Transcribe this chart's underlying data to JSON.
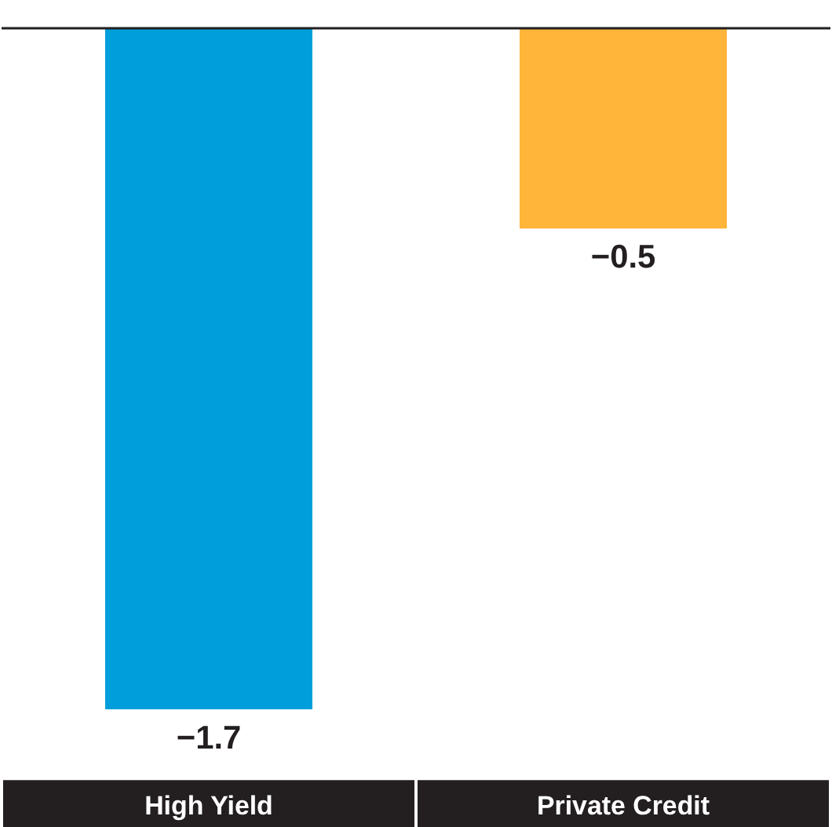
{
  "chart_data": {
    "type": "bar",
    "categories": [
      "High Yield",
      "Private Credit"
    ],
    "values": [
      -1.7,
      -0.5
    ],
    "colors": [
      "#009fdb",
      "#ffb43a"
    ],
    "data_labels": true,
    "tick_labels": "x"
  }
}
